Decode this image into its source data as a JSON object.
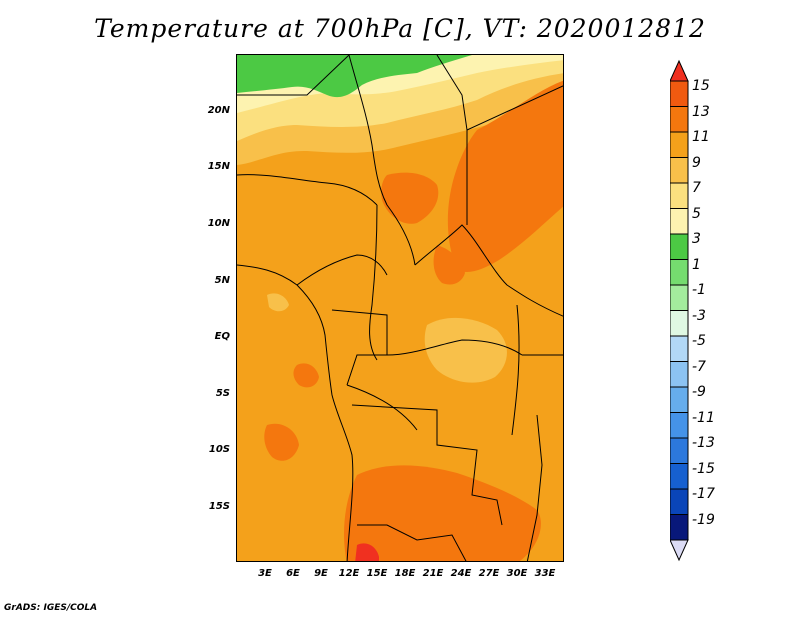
{
  "title": "Temperature at 700hPa [C], VT: 2020012812",
  "credit": "GrADS: IGES/COLA",
  "map": {
    "variable": "Temperature",
    "level": "700hPa",
    "units": "C",
    "valid_time": "2020012812",
    "lon_ticks": [
      "3E",
      "6E",
      "9E",
      "12E",
      "15E",
      "18E",
      "21E",
      "24E",
      "27E",
      "30E",
      "33E"
    ],
    "lat_ticks": [
      "20N",
      "15N",
      "10N",
      "5N",
      "EQ",
      "5S",
      "10S",
      "15S"
    ]
  },
  "colorbar": {
    "levels": [
      "15",
      "13",
      "11",
      "9",
      "7",
      "5",
      "3",
      "1",
      "-1",
      "-3",
      "-5",
      "-7",
      "-9",
      "-11",
      "-13",
      "-15",
      "-17",
      "-19"
    ],
    "colors": [
      "#f03020",
      "#f05a10",
      "#f4770e",
      "#f4a11b",
      "#f8c04a",
      "#fbe07f",
      "#4cc944",
      "#75dc6f",
      "#a3ec9d",
      "#dff8e3",
      "#b2d8f6",
      "#8cc3f2",
      "#66adec",
      "#4593e8",
      "#2c78dc",
      "#1660d0",
      "#0a45b8",
      "#08187a",
      "#dcdcf5"
    ]
  }
}
